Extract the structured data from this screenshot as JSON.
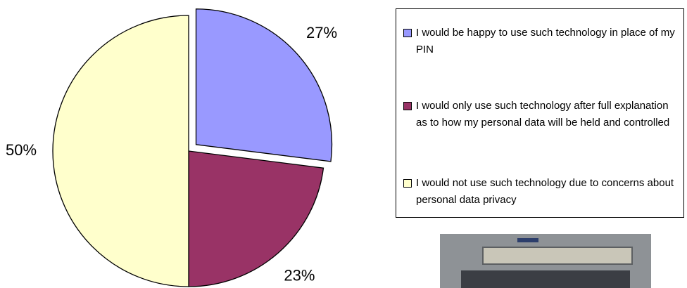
{
  "chart_data": {
    "type": "pie",
    "categories": [
      "I would be happy to use such technology in place of my PIN",
      "I would only use such technology after full explanation as to how my personal data will be held and controlled",
      "I would not use such technology due to concerns about personal data privacy"
    ],
    "values": [
      27,
      23,
      50
    ],
    "value_labels": [
      "27%",
      "23%",
      "50%"
    ],
    "colors": [
      "#9999ff",
      "#993366",
      "#ffffcc"
    ],
    "explode": [
      true,
      false,
      false
    ],
    "legend": "right"
  }
}
